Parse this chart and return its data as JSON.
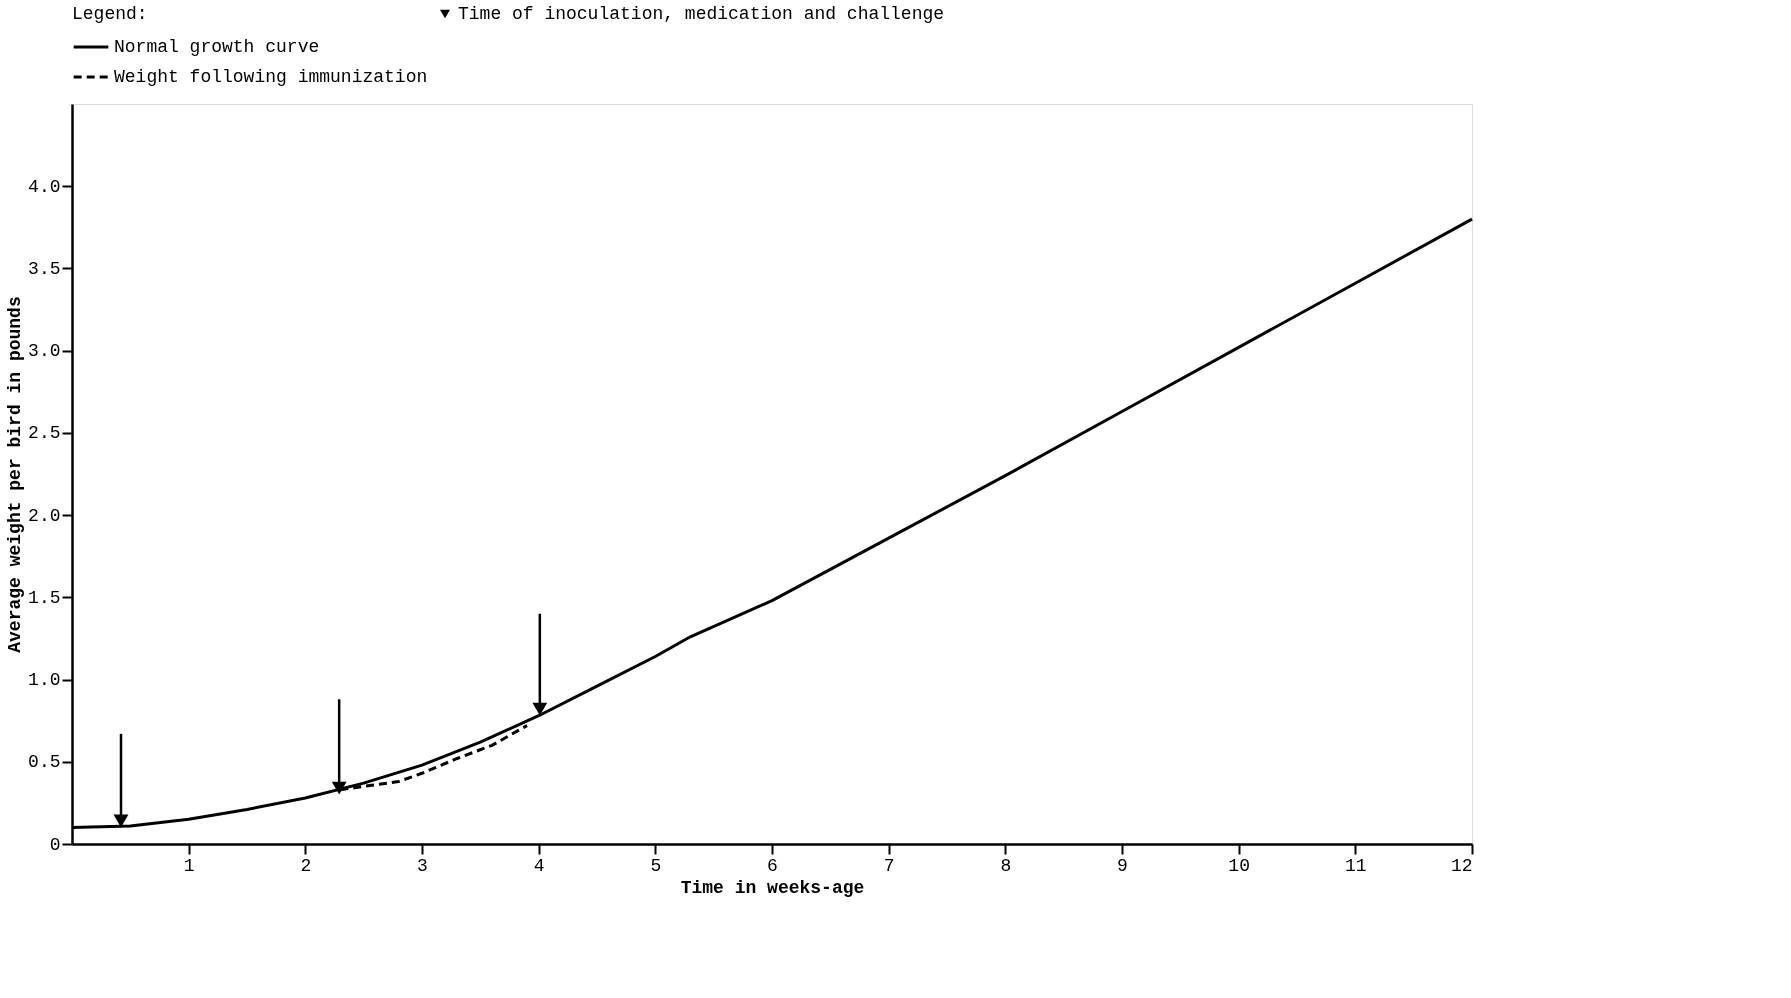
{
  "chart_data": {
    "type": "line",
    "xlabel": "Time in weeks-age",
    "ylabel": "Average weight per bird in pounds",
    "legend_title": "Legend:",
    "legend": "top",
    "xlim": [
      0,
      12
    ],
    "ylim": [
      0,
      4.5
    ],
    "xticks": [
      1,
      2,
      3,
      4,
      5,
      6,
      7,
      8,
      9,
      10,
      11,
      12
    ],
    "yticks": [
      0,
      {
        "value": 0.5,
        "label": "0.5"
      },
      {
        "value": 1,
        "label": "1.0"
      },
      {
        "value": 1.5,
        "label": "1.5"
      },
      {
        "value": 2,
        "label": "2.0"
      },
      {
        "value": 2.5,
        "label": "2.5"
      },
      {
        "value": 3,
        "label": "3.0"
      },
      {
        "value": 3.5,
        "label": "3.5"
      },
      {
        "value": 4,
        "label": "4.0"
      }
    ],
    "grid": false,
    "series": [
      {
        "name": "Normal growth curve",
        "color": "#000000",
        "line_style": "solid",
        "x": [
          0,
          0.5,
          1,
          1.5,
          2,
          2.5,
          3,
          3.5,
          4,
          4.5,
          5,
          5.3,
          6,
          7,
          8,
          9,
          10,
          11,
          12
        ],
        "values": [
          0.1,
          0.11,
          0.15,
          0.21,
          0.28,
          0.37,
          0.48,
          0.62,
          0.78,
          0.96,
          1.14,
          1.26,
          1.48,
          1.86,
          2.24,
          2.63,
          3.02,
          3.41,
          3.8
        ]
      },
      {
        "name": "Weight following immunization",
        "color": "#000000",
        "line_style": "dashed",
        "x": [
          2.3,
          2.6,
          2.8,
          3.0,
          3.3,
          3.6,
          3.9
        ],
        "values": [
          0.33,
          0.36,
          0.38,
          0.43,
          0.52,
          0.6,
          0.72
        ]
      },
      {
        "name": "Time of inoculation, medication and challenge",
        "type": "scatter",
        "marker": "triangle",
        "color": "#000000",
        "x": [
          0.42,
          2.29,
          4.01
        ],
        "values": [
          0.14,
          0.34,
          0.82
        ],
        "errors": [
          [
            0.14,
            0.67
          ],
          [
            0.34,
            0.88
          ],
          [
            0.82,
            1.4
          ]
        ]
      }
    ]
  }
}
